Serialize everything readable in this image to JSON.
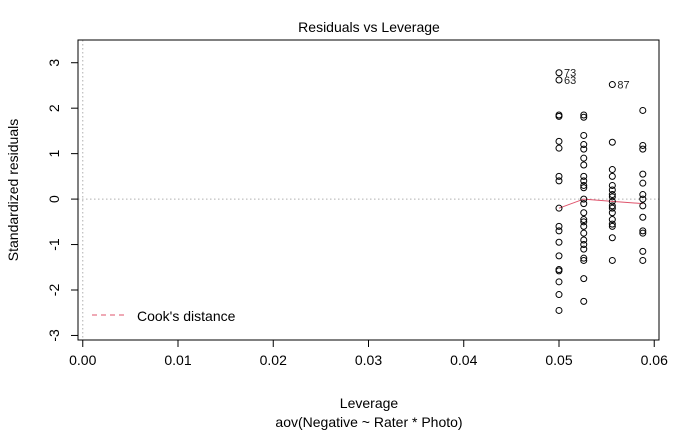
{
  "chart_data": {
    "type": "scatter",
    "title": "Residuals vs Leverage",
    "xlabel": "Leverage",
    "subtitle": "aov(Negative ~ Rater * Photo)",
    "ylabel": "Standardized residuals",
    "xlim": [
      -0.0005,
      0.0605
    ],
    "ylim": [
      -3.1,
      3.5
    ],
    "xticks": [
      "0.00",
      "0.01",
      "0.02",
      "0.03",
      "0.04",
      "0.05",
      "0.06"
    ],
    "xtick_values": [
      0,
      0.01,
      0.02,
      0.03,
      0.04,
      0.05,
      0.06
    ],
    "yticks": [
      "-3",
      "-2",
      "-1",
      "0",
      "1",
      "2",
      "3"
    ],
    "ytick_values": [
      -3,
      -2,
      -1,
      0,
      1,
      2,
      3
    ],
    "reference_lines": {
      "h": 0,
      "v": 0,
      "style": "dotted",
      "color": "#b0b0b0"
    },
    "colors": {
      "points": "#000000",
      "smooth": "#df536b",
      "cooks": "#df536b"
    },
    "legend": {
      "position": "bottom-left",
      "label": "Cook's distance",
      "style": "dashed"
    },
    "groups": [
      {
        "x": 0.05,
        "y": [
          2.78,
          2.62,
          1.85,
          1.82,
          1.27,
          1.12,
          0.5,
          0.4,
          -0.2,
          -0.6,
          -0.7,
          -0.95,
          -1.25,
          -1.55,
          -1.58,
          -1.82,
          -2.1,
          -2.45
        ]
      },
      {
        "x": 0.0526,
        "y": [
          1.85,
          1.8,
          1.4,
          1.2,
          1.1,
          0.9,
          0.75,
          0.5,
          0.4,
          0.3,
          0.25,
          0.0,
          -0.1,
          -0.3,
          -0.45,
          -0.5,
          -0.6,
          -0.75,
          -0.9,
          -1.0,
          -1.1,
          -1.3,
          -1.35,
          -1.75,
          -2.25
        ]
      },
      {
        "x": 0.0556,
        "y": [
          2.52,
          1.25,
          0.65,
          0.5,
          0.3,
          0.2,
          0.1,
          0.05,
          -0.05,
          -0.15,
          -0.2,
          -0.3,
          -0.45,
          -0.55,
          -0.6,
          -0.85,
          -1.35
        ]
      },
      {
        "x": 0.0588,
        "y": [
          1.95,
          1.18,
          1.1,
          0.55,
          0.35,
          0.1,
          0.0,
          -0.15,
          -0.4,
          -0.7,
          -0.75,
          -1.15,
          -1.35
        ]
      }
    ],
    "smooth_line": {
      "x": [
        0.05,
        0.0526,
        0.0556,
        0.0588
      ],
      "y": [
        -0.2,
        0.0,
        -0.05,
        -0.1
      ]
    },
    "point_labels": [
      {
        "text": "73",
        "x": 0.05,
        "y": 2.78
      },
      {
        "text": "63",
        "x": 0.05,
        "y": 2.62
      },
      {
        "text": "87",
        "x": 0.0556,
        "y": 2.52
      }
    ]
  }
}
